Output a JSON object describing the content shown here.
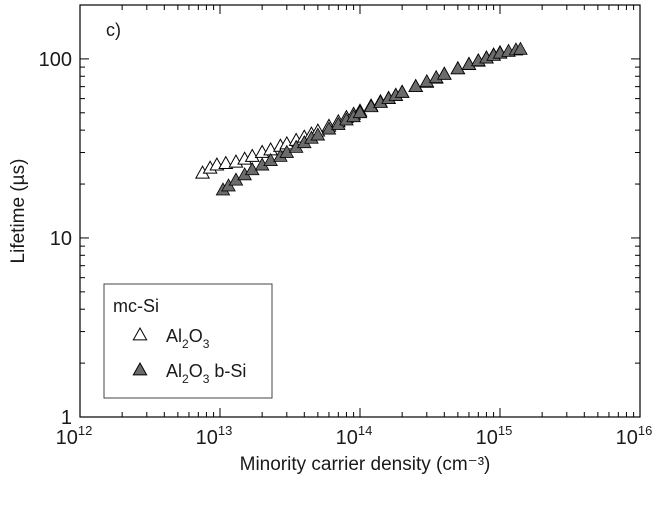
{
  "chart_data": {
    "type": "scatter",
    "panel_label": "c)",
    "xlabel": "Minority carrier density (cm⁻³)",
    "ylabel": "Lifetime (µs)",
    "xscale": "log",
    "yscale": "log",
    "xlim": [
      1000000000000.0,
      1e+16
    ],
    "ylim": [
      1,
      200
    ],
    "x_ticks": [
      {
        "base": "10",
        "exp": "12"
      },
      {
        "base": "10",
        "exp": "13"
      },
      {
        "base": "10",
        "exp": "14"
      },
      {
        "base": "10",
        "exp": "15"
      },
      {
        "base": "10",
        "exp": "16"
      }
    ],
    "y_ticks": [
      "1",
      "10",
      "100"
    ],
    "grid": false,
    "legend": {
      "position": "bottom-left",
      "title": "mc-Si",
      "entries": [
        {
          "parts": [
            {
              "t": "Al"
            },
            {
              "t": "2",
              "sub": true
            },
            {
              "t": "O"
            },
            {
              "t": "3",
              "sub": true
            }
          ],
          "marker": "triangle-open",
          "color": "#ffffff"
        },
        {
          "parts": [
            {
              "t": "Al"
            },
            {
              "t": "2",
              "sub": true
            },
            {
              "t": "O"
            },
            {
              "t": "3",
              "sub": true
            },
            {
              "t": " b-Si"
            }
          ],
          "marker": "triangle-filled",
          "color": "#6b6b6b"
        }
      ]
    },
    "series": [
      {
        "name": "Al2O3",
        "marker": "triangle-open",
        "color": "#ffffff",
        "x": [
          7500000000000.0,
          8500000000000.0,
          9500000000000.0,
          11000000000000.0,
          13000000000000.0,
          15000000000000.0,
          17000000000000.0,
          20000000000000.0,
          23000000000000.0,
          27000000000000.0,
          30000000000000.0,
          35000000000000.0,
          40000000000000.0,
          45000000000000.0,
          50000000000000.0,
          60000000000000.0,
          70000000000000.0,
          80000000000000.0,
          90000000000000.0,
          100000000000000.0,
          120000000000000.0,
          140000000000000.0,
          160000000000000.0,
          180000000000000.0,
          200000000000000.0,
          250000000000000.0,
          300000000000000.0,
          350000000000000.0,
          400000000000000.0,
          500000000000000.0,
          600000000000000.0,
          700000000000000.0,
          800000000000000.0,
          900000000000000.0,
          1000000000000000.0
        ],
        "y": [
          23,
          24.5,
          25.5,
          26,
          26.5,
          27.5,
          28.5,
          30,
          31,
          32.5,
          33.5,
          35,
          36.5,
          38,
          39.5,
          42,
          44.5,
          47,
          49,
          51,
          54.5,
          57.5,
          60,
          62.5,
          65,
          70,
          74,
          78,
          82,
          88,
          93,
          97,
          101,
          105,
          108
        ]
      },
      {
        "name": "Al2O3 b-Si",
        "marker": "triangle-filled",
        "color": "#6b6b6b",
        "x": [
          10500000000000.0,
          11500000000000.0,
          13000000000000.0,
          15000000000000.0,
          17000000000000.0,
          20000000000000.0,
          23000000000000.0,
          27000000000000.0,
          30000000000000.0,
          35000000000000.0,
          40000000000000.0,
          45000000000000.0,
          50000000000000.0,
          60000000000000.0,
          70000000000000.0,
          80000000000000.0,
          90000000000000.0,
          100000000000000.0,
          120000000000000.0,
          140000000000000.0,
          160000000000000.0,
          180000000000000.0,
          200000000000000.0,
          250000000000000.0,
          300000000000000.0,
          350000000000000.0,
          400000000000000.0,
          500000000000000.0,
          600000000000000.0,
          700000000000000.0,
          800000000000000.0,
          900000000000000.0,
          1000000000000000.0,
          1150000000000000.0,
          1300000000000000.0,
          1400000000000000.0
        ],
        "y": [
          18.5,
          19.5,
          21,
          22.5,
          24,
          25.5,
          27,
          28.5,
          30,
          32,
          34,
          36,
          37.5,
          40.5,
          43,
          45.5,
          47.5,
          50,
          54,
          57,
          60,
          62.5,
          65,
          70,
          74.5,
          78.5,
          82,
          88,
          93,
          97.5,
          101,
          104.5,
          107.5,
          110,
          112,
          113
        ]
      }
    ]
  }
}
